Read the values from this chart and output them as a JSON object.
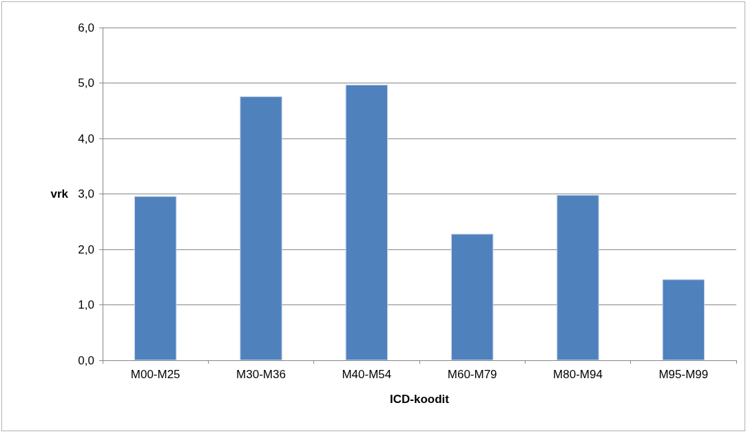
{
  "chart_data": {
    "type": "bar",
    "xlabel": "ICD-koodit",
    "ylabel": "vrk",
    "categories": [
      "M00-M25",
      "M30-M36",
      "M40-M54",
      "M60-M79",
      "M80-M94",
      "M95-M99"
    ],
    "values": [
      2.96,
      4.76,
      4.97,
      2.28,
      2.98,
      1.46
    ],
    "color": "#4f81bd",
    "ylim": [
      0,
      6
    ],
    "yticks": [
      {
        "value": 0,
        "label": "0,0"
      },
      {
        "value": 1,
        "label": "1,0"
      },
      {
        "value": 2,
        "label": "2,0"
      },
      {
        "value": 3,
        "label": "3,0"
      },
      {
        "value": 4,
        "label": "4,0"
      },
      {
        "value": 5,
        "label": "5,0"
      },
      {
        "value": 6,
        "label": "6,0"
      }
    ],
    "grid": "y"
  }
}
